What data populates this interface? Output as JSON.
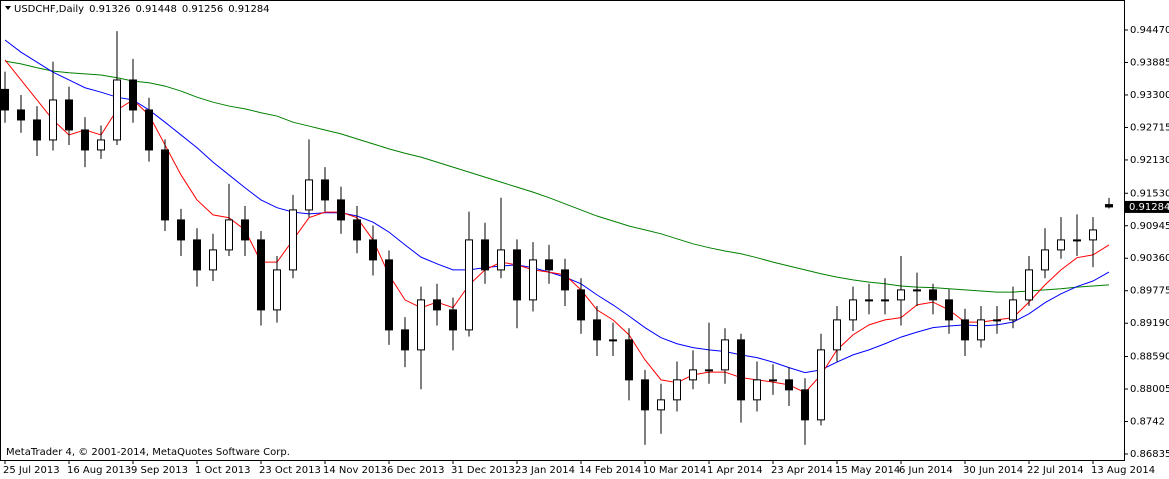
{
  "chart_data": {
    "type": "candlestick",
    "title": "USDCHF,Daily",
    "watermark": "MetaTrader 4, © 2001-2014, MetaQuotes Software Corp.",
    "categories": [
      "25 Jul 2013",
      null,
      null,
      null,
      "16 Aug 2013",
      null,
      null,
      null,
      "9 Sep 2013",
      null,
      null,
      null,
      "1 Oct 2013",
      null,
      null,
      null,
      "23 Oct 2013",
      null,
      null,
      null,
      "14 Nov 2013",
      null,
      null,
      null,
      "6 Dec 2013",
      null,
      null,
      null,
      "31 Dec 2013",
      null,
      null,
      null,
      "23 Jan 2014",
      null,
      null,
      null,
      "14 Feb 2014",
      null,
      null,
      null,
      "10 Mar 2014",
      null,
      null,
      null,
      "1 Apr 2014",
      null,
      null,
      null,
      "23 Apr 2014",
      null,
      null,
      null,
      "15 May 2014",
      null,
      null,
      null,
      "6 Jun 2014",
      null,
      null,
      null,
      "30 Jun 2014",
      null,
      null,
      null,
      "22 Jul 2014",
      null,
      null,
      null,
      "13 Aug 2014",
      null
    ],
    "open": [
      0.934,
      0.9303,
      0.9285,
      0.9249,
      0.9321,
      0.9267,
      0.9231,
      0.9249,
      0.9357,
      0.9303,
      0.9231,
      0.9105,
      0.9069,
      0.9015,
      0.9051,
      0.9105,
      0.9069,
      0.8943,
      0.9015,
      0.9123,
      0.9177,
      0.9141,
      0.9105,
      0.9069,
      0.9033,
      0.8907,
      0.8871,
      0.8961,
      0.8943,
      0.8907,
      0.9069,
      0.9015,
      0.9051,
      0.8961,
      0.9033,
      0.9015,
      0.8979,
      0.8925,
      0.8889,
      0.8889,
      0.8817,
      0.8763,
      0.8781,
      0.8817,
      0.8835,
      0.8835,
      0.8889,
      0.8781,
      0.8817,
      0.8817,
      0.8799,
      0.8745,
      0.8871,
      0.8925,
      0.8961,
      0.8961,
      0.8961,
      0.8979,
      0.8979,
      0.8961,
      0.8925,
      0.8889,
      0.8925,
      0.8925,
      0.8961,
      0.9015,
      0.9051,
      0.9069,
      0.9069,
      0.91326
    ],
    "high": [
      0.9372,
      0.933,
      0.931,
      0.939,
      0.9345,
      0.929,
      0.9275,
      0.9445,
      0.9395,
      0.9325,
      0.925,
      0.9125,
      0.909,
      0.908,
      0.917,
      0.913,
      0.9085,
      0.904,
      0.915,
      0.925,
      0.92,
      0.9165,
      0.913,
      0.9095,
      0.905,
      0.893,
      0.8985,
      0.899,
      0.8965,
      0.912,
      0.91,
      0.9145,
      0.907,
      0.9065,
      0.906,
      0.9035,
      0.9,
      0.895,
      0.892,
      0.891,
      0.8835,
      0.881,
      0.885,
      0.887,
      0.892,
      0.891,
      0.89,
      0.885,
      0.8845,
      0.884,
      0.882,
      0.89,
      0.895,
      0.8985,
      0.899,
      0.9,
      0.904,
      0.901,
      0.899,
      0.898,
      0.8945,
      0.895,
      0.895,
      0.8985,
      0.904,
      0.909,
      0.911,
      0.9115,
      0.911,
      0.91448
    ],
    "low": [
      0.928,
      0.9262,
      0.922,
      0.923,
      0.924,
      0.92,
      0.9215,
      0.924,
      0.928,
      0.921,
      0.9085,
      0.904,
      0.8985,
      0.8995,
      0.904,
      0.904,
      0.8915,
      0.892,
      0.9,
      0.911,
      0.912,
      0.908,
      0.9045,
      0.9005,
      0.888,
      0.884,
      0.88,
      0.8915,
      0.887,
      0.8895,
      0.899,
      0.9,
      0.891,
      0.894,
      0.899,
      0.895,
      0.89,
      0.886,
      0.886,
      0.878,
      0.87,
      0.872,
      0.876,
      0.88,
      0.881,
      0.881,
      0.874,
      0.876,
      0.879,
      0.877,
      0.87,
      0.8735,
      0.885,
      0.8905,
      0.8935,
      0.8935,
      0.8915,
      0.895,
      0.8935,
      0.89,
      0.886,
      0.8875,
      0.89,
      0.891,
      0.895,
      0.9,
      0.9035,
      0.904,
      0.902,
      0.91256
    ],
    "close": [
      0.9303,
      0.9285,
      0.9249,
      0.9321,
      0.9267,
      0.9231,
      0.9249,
      0.9357,
      0.9303,
      0.9231,
      0.9105,
      0.9069,
      0.9015,
      0.9051,
      0.9105,
      0.9069,
      0.8943,
      0.9015,
      0.9123,
      0.9177,
      0.9141,
      0.9105,
      0.9069,
      0.9033,
      0.8907,
      0.8871,
      0.8961,
      0.8943,
      0.8907,
      0.9069,
      0.9015,
      0.9051,
      0.8961,
      0.9033,
      0.9015,
      0.8979,
      0.8925,
      0.8889,
      0.8889,
      0.8817,
      0.8763,
      0.8781,
      0.8817,
      0.8835,
      0.8835,
      0.8889,
      0.8781,
      0.8817,
      0.8817,
      0.8799,
      0.8745,
      0.8871,
      0.8925,
      0.8961,
      0.8961,
      0.8961,
      0.8979,
      0.8979,
      0.8961,
      0.8925,
      0.8889,
      0.8925,
      0.8925,
      0.8961,
      0.9015,
      0.9051,
      0.9069,
      0.9069,
      0.9087,
      0.91284
    ],
    "up_color": "#ffffff",
    "down_color": "#000000",
    "moving_averages": [
      {
        "color": "#008000",
        "values": [
          0.9391,
          0.9386,
          0.9379,
          0.9373,
          0.937,
          0.9368,
          0.9366,
          0.9361,
          0.9355,
          0.9352,
          0.9346,
          0.9337,
          0.9326,
          0.9317,
          0.931,
          0.9305,
          0.9298,
          0.9292,
          0.9281,
          0.9274,
          0.9267,
          0.926,
          0.9251,
          0.9242,
          0.9233,
          0.9225,
          0.9218,
          0.9209,
          0.92,
          0.9191,
          0.9182,
          0.9173,
          0.9164,
          0.9155,
          0.9145,
          0.9134,
          0.9123,
          0.9112,
          0.9103,
          0.9094,
          0.9087,
          0.908,
          0.9071,
          0.9062,
          0.9055,
          0.9049,
          0.9044,
          0.9037,
          0.9029,
          0.9022,
          0.9015,
          0.9008,
          0.9002,
          0.8997,
          0.8993,
          0.899,
          0.8986,
          0.8984,
          0.8983,
          0.8981,
          0.8979,
          0.8977,
          0.8975,
          0.8975,
          0.8977,
          0.8979,
          0.8981,
          0.8984,
          0.8986,
          0.8988
        ]
      },
      {
        "color": "#0000ff",
        "values": [
          0.9429,
          0.9407,
          0.9389,
          0.9371,
          0.9357,
          0.9343,
          0.9335,
          0.9326,
          0.9321,
          0.9303,
          0.9281,
          0.9258,
          0.9235,
          0.9209,
          0.9186,
          0.9163,
          0.9141,
          0.9127,
          0.9119,
          0.9116,
          0.9118,
          0.9118,
          0.9112,
          0.9101,
          0.9083,
          0.906,
          0.9038,
          0.9026,
          0.9015,
          0.9015,
          0.9019,
          0.9022,
          0.9024,
          0.9019,
          0.9011,
          0.9002,
          0.899,
          0.897,
          0.8952,
          0.8932,
          0.8911,
          0.8893,
          0.8882,
          0.8875,
          0.8871,
          0.8868,
          0.8862,
          0.8857,
          0.8849,
          0.8839,
          0.883,
          0.8835,
          0.8849,
          0.8862,
          0.8871,
          0.8882,
          0.8894,
          0.8903,
          0.8911,
          0.8914,
          0.8916,
          0.8914,
          0.8916,
          0.8921,
          0.8936,
          0.8956,
          0.8972,
          0.8985,
          0.8995,
          0.9011
        ]
      },
      {
        "color": "#ff0000",
        "values": [
          0.9393,
          0.9357,
          0.9321,
          0.9285,
          0.9258,
          0.9267,
          0.9258,
          0.9303,
          0.9321,
          0.9294,
          0.924,
          0.9186,
          0.9141,
          0.9114,
          0.9109,
          0.9087,
          0.9029,
          0.9029,
          0.9069,
          0.9109,
          0.9119,
          0.9119,
          0.9109,
          0.9069,
          0.9006,
          0.8961,
          0.8947,
          0.8957,
          0.8947,
          0.8988,
          0.9015,
          0.9029,
          0.9024,
          0.9015,
          0.9011,
          0.9006,
          0.8979,
          0.8943,
          0.8925,
          0.8898,
          0.8853,
          0.8817,
          0.8812,
          0.8826,
          0.8831,
          0.8831,
          0.8821,
          0.8817,
          0.8813,
          0.8808,
          0.8794,
          0.8826,
          0.8871,
          0.8898,
          0.8916,
          0.8925,
          0.8929,
          0.8952,
          0.8957,
          0.8943,
          0.8921,
          0.8921,
          0.8925,
          0.8929,
          0.8957,
          0.8988,
          0.9015,
          0.9037,
          0.9042,
          0.906
        ]
      }
    ],
    "ylim": [
      0.86727,
      0.9501
    ],
    "yticks": [
      {
        "value": 0.9447,
        "label": "0.94470"
      },
      0.93885,
      {
        "value": 0.933,
        "label": "0.93300"
      },
      0.92715,
      {
        "value": 0.9213,
        "label": "0.92130"
      },
      {
        "value": 0.9153,
        "label": "0.91530"
      },
      0.90945,
      {
        "value": 0.9036,
        "label": "0.90360"
      },
      0.89775,
      {
        "value": 0.8919,
        "label": "0.89190"
      },
      {
        "value": 0.8859,
        "label": "0.88590"
      },
      0.88005,
      0.8742,
      0.86835
    ],
    "grid": false
  }
}
